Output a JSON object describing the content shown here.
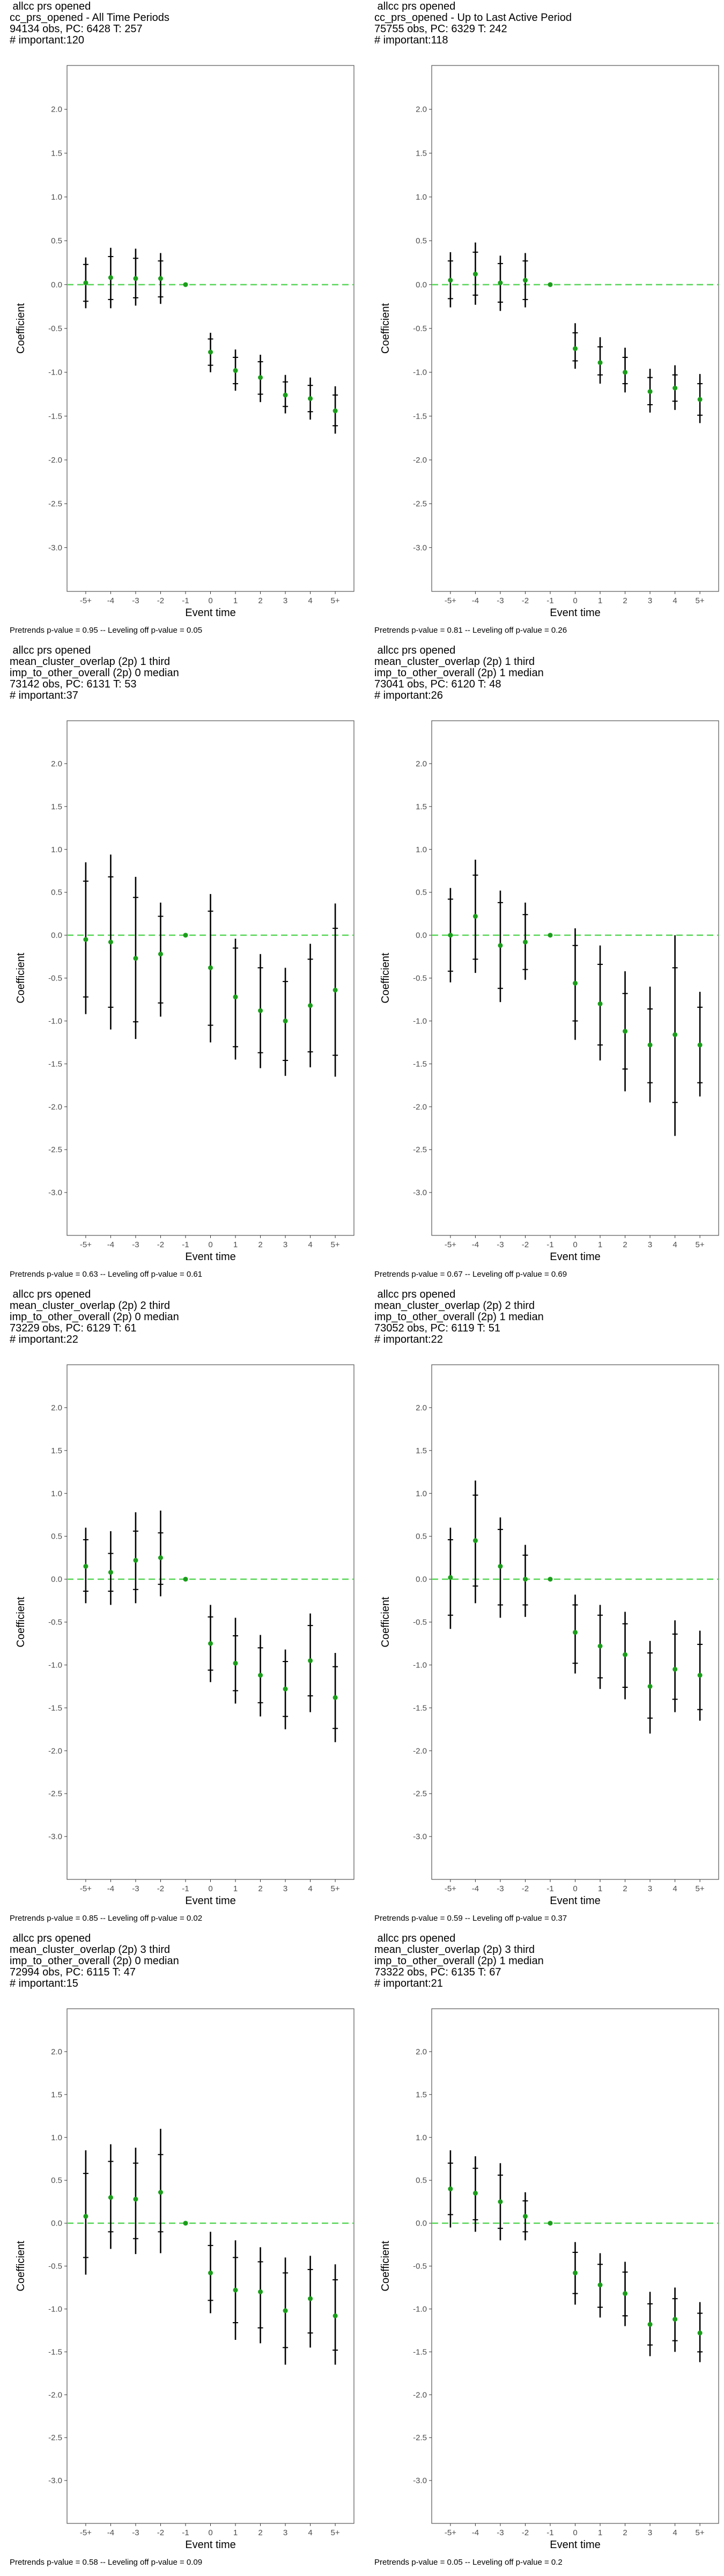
{
  "chart_data": [
    {
      "type": "scatter",
      "title_lines": [
        "allcc prs opened",
        "cc_prs_opened - All Time Periods",
        "94134 obs, PC: 6428 T: 257",
        "# important:120"
      ],
      "xlabel": "Event time",
      "ylabel": "Coefficient",
      "categories": [
        "-5+",
        "-4",
        "-3",
        "-2",
        "-1",
        "0",
        "1",
        "2",
        "3",
        "4",
        "5+"
      ],
      "ylim": [
        -3.5,
        2.5
      ],
      "yticks": [
        "-3.0",
        "-2.5",
        "-2.0",
        "-1.5",
        "-1.0",
        "-0.5",
        "0.0",
        "0.5",
        "1.0",
        "1.5",
        "2.0"
      ],
      "estimate": [
        0.02,
        0.08,
        0.07,
        0.07,
        0.0,
        -0.77,
        -0.98,
        -1.06,
        -1.26,
        -1.3,
        -1.44
      ],
      "ci_outer": [
        [
          -0.27,
          0.31
        ],
        [
          -0.27,
          0.42
        ],
        [
          -0.24,
          0.41
        ],
        [
          -0.22,
          0.36
        ],
        [
          0.0,
          0.0
        ],
        [
          -1.0,
          -0.55
        ],
        [
          -1.21,
          -0.74
        ],
        [
          -1.34,
          -0.8
        ],
        [
          -1.47,
          -1.03
        ],
        [
          -1.54,
          -1.06
        ],
        [
          -1.7,
          -1.16
        ]
      ],
      "ci_inner": [
        [
          -0.19,
          0.23
        ],
        [
          -0.17,
          0.32
        ],
        [
          -0.15,
          0.3
        ],
        [
          -0.14,
          0.27
        ],
        [
          0.0,
          0.0
        ],
        [
          -0.92,
          -0.62
        ],
        [
          -1.13,
          -0.83
        ],
        [
          -1.25,
          -0.88
        ],
        [
          -1.39,
          -1.11
        ],
        [
          -1.45,
          -1.15
        ],
        [
          -1.61,
          -1.26
        ]
      ],
      "reference_line": 0,
      "footer": "Pretrends p-value = 0.95 -- Leveling off p-value = 0.05"
    },
    {
      "type": "scatter",
      "title_lines": [
        "allcc prs opened",
        "cc_prs_opened - Up to Last Active Period",
        "75755 obs, PC: 6329 T: 242",
        "# important:118"
      ],
      "xlabel": "Event time",
      "ylabel": "Coefficient",
      "categories": [
        "-5+",
        "-4",
        "-3",
        "-2",
        "-1",
        "0",
        "1",
        "2",
        "3",
        "4",
        "5+"
      ],
      "ylim": [
        -3.5,
        2.5
      ],
      "yticks": [
        "-3.0",
        "-2.5",
        "-2.0",
        "-1.5",
        "-1.0",
        "-0.5",
        "0.0",
        "0.5",
        "1.0",
        "1.5",
        "2.0"
      ],
      "estimate": [
        0.05,
        0.12,
        0.02,
        0.05,
        0.0,
        -0.73,
        -0.89,
        -1.0,
        -1.22,
        -1.18,
        -1.31
      ],
      "ci_outer": [
        [
          -0.26,
          0.37
        ],
        [
          -0.23,
          0.48
        ],
        [
          -0.3,
          0.33
        ],
        [
          -0.26,
          0.36
        ],
        [
          0.0,
          0.0
        ],
        [
          -0.96,
          -0.44
        ],
        [
          -1.13,
          -0.6
        ],
        [
          -1.23,
          -0.72
        ],
        [
          -1.46,
          -0.96
        ],
        [
          -1.43,
          -0.92
        ],
        [
          -1.58,
          -1.02
        ]
      ],
      "ci_inner": [
        [
          -0.16,
          0.27
        ],
        [
          -0.12,
          0.37
        ],
        [
          -0.2,
          0.24
        ],
        [
          -0.17,
          0.27
        ],
        [
          0.0,
          0.0
        ],
        [
          -0.87,
          -0.55
        ],
        [
          -1.03,
          -0.71
        ],
        [
          -1.13,
          -0.83
        ],
        [
          -1.37,
          -1.06
        ],
        [
          -1.33,
          -1.03
        ],
        [
          -1.49,
          -1.13
        ]
      ],
      "reference_line": 0,
      "footer": "Pretrends p-value = 0.81 -- Leveling off p-value = 0.26"
    },
    {
      "type": "scatter",
      "title_lines": [
        "allcc prs opened",
        "mean_cluster_overlap (2p) 1 third",
        "imp_to_other_overall (2p) 0 median",
        "73142 obs, PC: 6131 T: 53",
        "# important:37"
      ],
      "xlabel": "Event time",
      "ylabel": "Coefficient",
      "categories": [
        "-5+",
        "-4",
        "-3",
        "-2",
        "-1",
        "0",
        "1",
        "2",
        "3",
        "4",
        "5+"
      ],
      "ylim": [
        -3.5,
        2.5
      ],
      "yticks": [
        "-3.0",
        "-2.5",
        "-2.0",
        "-1.5",
        "-1.0",
        "-0.5",
        "0.0",
        "0.5",
        "1.0",
        "1.5",
        "2.0"
      ],
      "estimate": [
        -0.05,
        -0.08,
        -0.27,
        -0.22,
        0.0,
        -0.38,
        -0.72,
        -0.88,
        -1.0,
        -0.82,
        -0.64
      ],
      "ci_outer": [
        [
          -0.92,
          0.85
        ],
        [
          -1.1,
          0.94
        ],
        [
          -1.21,
          0.68
        ],
        [
          -0.95,
          0.38
        ],
        [
          0.0,
          0.0
        ],
        [
          -1.25,
          0.48
        ],
        [
          -1.45,
          -0.04
        ],
        [
          -1.55,
          -0.22
        ],
        [
          -1.64,
          -0.38
        ],
        [
          -1.54,
          -0.1
        ],
        [
          -1.65,
          0.37
        ]
      ],
      "ci_inner": [
        [
          -0.72,
          0.63
        ],
        [
          -0.84,
          0.68
        ],
        [
          -1.01,
          0.44
        ],
        [
          -0.79,
          0.22
        ],
        [
          0.0,
          0.0
        ],
        [
          -1.05,
          0.28
        ],
        [
          -1.3,
          -0.15
        ],
        [
          -1.37,
          -0.38
        ],
        [
          -1.46,
          -0.54
        ],
        [
          -1.36,
          -0.28
        ],
        [
          -1.4,
          0.08
        ]
      ],
      "reference_line": 0,
      "footer": "Pretrends p-value = 0.63 -- Leveling off p-value = 0.61"
    },
    {
      "type": "scatter",
      "title_lines": [
        "allcc prs opened",
        "mean_cluster_overlap (2p) 1 third",
        "imp_to_other_overall (2p) 1 median",
        "73041 obs, PC: 6120 T: 48",
        "# important:26"
      ],
      "xlabel": "Event time",
      "ylabel": "Coefficient",
      "categories": [
        "-5+",
        "-4",
        "-3",
        "-2",
        "-1",
        "0",
        "1",
        "2",
        "3",
        "4",
        "5+"
      ],
      "ylim": [
        -3.5,
        2.5
      ],
      "yticks": [
        "-3.0",
        "-2.5",
        "-2.0",
        "-1.5",
        "-1.0",
        "-0.5",
        "0.0",
        "0.5",
        "1.0",
        "1.5",
        "2.0"
      ],
      "estimate": [
        0.0,
        0.22,
        -0.12,
        -0.08,
        0.0,
        -0.56,
        -0.8,
        -1.12,
        -1.28,
        -1.16,
        -1.28
      ],
      "ci_outer": [
        [
          -0.55,
          0.55
        ],
        [
          -0.44,
          0.88
        ],
        [
          -0.78,
          0.52
        ],
        [
          -0.52,
          0.38
        ],
        [
          0.0,
          0.0
        ],
        [
          -1.22,
          0.08
        ],
        [
          -1.46,
          -0.12
        ],
        [
          -1.82,
          -0.42
        ],
        [
          -1.95,
          -0.6
        ],
        [
          -2.34,
          0.0
        ],
        [
          -1.88,
          -0.66
        ]
      ],
      "ci_inner": [
        [
          -0.42,
          0.42
        ],
        [
          -0.28,
          0.7
        ],
        [
          -0.62,
          0.38
        ],
        [
          -0.4,
          0.24
        ],
        [
          0.0,
          0.0
        ],
        [
          -1.0,
          -0.12
        ],
        [
          -1.28,
          -0.34
        ],
        [
          -1.56,
          -0.68
        ],
        [
          -1.72,
          -0.86
        ],
        [
          -1.95,
          -0.38
        ],
        [
          -1.72,
          -0.84
        ]
      ],
      "reference_line": 0,
      "footer": "Pretrends p-value = 0.67 -- Leveling off p-value = 0.69"
    },
    {
      "type": "scatter",
      "title_lines": [
        "allcc prs opened",
        "mean_cluster_overlap (2p) 2 third",
        "imp_to_other_overall (2p) 0 median",
        "73229 obs, PC: 6129 T: 61",
        "# important:22"
      ],
      "xlabel": "Event time",
      "ylabel": "Coefficient",
      "categories": [
        "-5+",
        "-4",
        "-3",
        "-2",
        "-1",
        "0",
        "1",
        "2",
        "3",
        "4",
        "5+"
      ],
      "ylim": [
        -3.5,
        2.5
      ],
      "yticks": [
        "-3.0",
        "-2.5",
        "-2.0",
        "-1.5",
        "-1.0",
        "-0.5",
        "0.0",
        "0.5",
        "1.0",
        "1.5",
        "2.0"
      ],
      "estimate": [
        0.15,
        0.08,
        0.22,
        0.25,
        0.0,
        -0.75,
        -0.98,
        -1.12,
        -1.28,
        -0.95,
        -1.38
      ],
      "ci_outer": [
        [
          -0.28,
          0.6
        ],
        [
          -0.3,
          0.56
        ],
        [
          -0.28,
          0.78
        ],
        [
          -0.2,
          0.8
        ],
        [
          0.0,
          0.0
        ],
        [
          -1.2,
          -0.3
        ],
        [
          -1.45,
          -0.45
        ],
        [
          -1.6,
          -0.65
        ],
        [
          -1.75,
          -0.82
        ],
        [
          -1.55,
          -0.4
        ],
        [
          -1.9,
          -0.86
        ]
      ],
      "ci_inner": [
        [
          -0.14,
          0.46
        ],
        [
          -0.14,
          0.3
        ],
        [
          -0.12,
          0.56
        ],
        [
          -0.06,
          0.54
        ],
        [
          0.0,
          0.0
        ],
        [
          -1.06,
          -0.44
        ],
        [
          -1.3,
          -0.66
        ],
        [
          -1.44,
          -0.8
        ],
        [
          -1.6,
          -0.96
        ],
        [
          -1.36,
          -0.54
        ],
        [
          -1.74,
          -1.02
        ]
      ],
      "reference_line": 0,
      "footer": "Pretrends p-value = 0.85 -- Leveling off p-value = 0.02"
    },
    {
      "type": "scatter",
      "title_lines": [
        "allcc prs opened",
        "mean_cluster_overlap (2p) 2 third",
        "imp_to_other_overall (2p) 1 median",
        "73052 obs, PC: 6119 T: 51",
        "# important:22"
      ],
      "xlabel": "Event time",
      "ylabel": "Coefficient",
      "categories": [
        "-5+",
        "-4",
        "-3",
        "-2",
        "-1",
        "0",
        "1",
        "2",
        "3",
        "4",
        "5+"
      ],
      "ylim": [
        -3.5,
        2.5
      ],
      "yticks": [
        "-3.0",
        "-2.5",
        "-2.0",
        "-1.5",
        "-1.0",
        "-0.5",
        "0.0",
        "0.5",
        "1.0",
        "1.5",
        "2.0"
      ],
      "estimate": [
        0.02,
        0.45,
        0.15,
        0.0,
        0.0,
        -0.62,
        -0.78,
        -0.88,
        -1.25,
        -1.05,
        -1.12
      ],
      "ci_outer": [
        [
          -0.58,
          0.6
        ],
        [
          -0.28,
          1.15
        ],
        [
          -0.45,
          0.72
        ],
        [
          -0.44,
          0.4
        ],
        [
          0.0,
          0.0
        ],
        [
          -1.1,
          -0.18
        ],
        [
          -1.28,
          -0.3
        ],
        [
          -1.4,
          -0.38
        ],
        [
          -1.8,
          -0.72
        ],
        [
          -1.55,
          -0.48
        ],
        [
          -1.65,
          -0.6
        ]
      ],
      "ci_inner": [
        [
          -0.42,
          0.46
        ],
        [
          -0.08,
          0.98
        ],
        [
          -0.3,
          0.58
        ],
        [
          -0.3,
          0.28
        ],
        [
          0.0,
          0.0
        ],
        [
          -0.98,
          -0.3
        ],
        [
          -1.15,
          -0.42
        ],
        [
          -1.26,
          -0.52
        ],
        [
          -1.62,
          -0.86
        ],
        [
          -1.4,
          -0.64
        ],
        [
          -1.52,
          -0.76
        ]
      ],
      "reference_line": 0,
      "footer": "Pretrends p-value = 0.59 -- Leveling off p-value = 0.37"
    },
    {
      "type": "scatter",
      "title_lines": [
        "allcc prs opened",
        "mean_cluster_overlap (2p) 3 third",
        "imp_to_other_overall (2p) 0 median",
        "72994 obs, PC: 6115 T: 47",
        "# important:15"
      ],
      "xlabel": "Event time",
      "ylabel": "Coefficient",
      "categories": [
        "-5+",
        "-4",
        "-3",
        "-2",
        "-1",
        "0",
        "1",
        "2",
        "3",
        "4",
        "5+"
      ],
      "ylim": [
        -3.5,
        2.5
      ],
      "yticks": [
        "-3.0",
        "-2.5",
        "-2.0",
        "-1.5",
        "-1.0",
        "-0.5",
        "0.0",
        "0.5",
        "1.0",
        "1.5",
        "2.0"
      ],
      "estimate": [
        0.08,
        0.3,
        0.28,
        0.36,
        0.0,
        -0.58,
        -0.78,
        -0.8,
        -1.02,
        -0.88,
        -1.08
      ],
      "ci_outer": [
        [
          -0.6,
          0.85
        ],
        [
          -0.3,
          0.92
        ],
        [
          -0.36,
          0.88
        ],
        [
          -0.35,
          1.1
        ],
        [
          0.0,
          0.0
        ],
        [
          -1.05,
          -0.1
        ],
        [
          -1.36,
          -0.2
        ],
        [
          -1.4,
          -0.28
        ],
        [
          -1.65,
          -0.4
        ],
        [
          -1.45,
          -0.38
        ],
        [
          -1.65,
          -0.48
        ]
      ],
      "ci_inner": [
        [
          -0.4,
          0.58
        ],
        [
          -0.1,
          0.72
        ],
        [
          -0.18,
          0.7
        ],
        [
          -0.1,
          0.8
        ],
        [
          0.0,
          0.0
        ],
        [
          -0.9,
          -0.26
        ],
        [
          -1.16,
          -0.4
        ],
        [
          -1.22,
          -0.45
        ],
        [
          -1.45,
          -0.58
        ],
        [
          -1.28,
          -0.54
        ],
        [
          -1.48,
          -0.66
        ]
      ],
      "reference_line": 0,
      "footer": "Pretrends p-value = 0.58 -- Leveling off p-value = 0.09"
    },
    {
      "type": "scatter",
      "title_lines": [
        "allcc prs opened",
        "mean_cluster_overlap (2p) 3 third",
        "imp_to_other_overall (2p) 1 median",
        "73322 obs, PC: 6135 T: 67",
        "# important:21"
      ],
      "xlabel": "Event time",
      "ylabel": "Coefficient",
      "categories": [
        "-5+",
        "-4",
        "-3",
        "-2",
        "-1",
        "0",
        "1",
        "2",
        "3",
        "4",
        "5+"
      ],
      "ylim": [
        -3.5,
        2.5
      ],
      "yticks": [
        "-3.0",
        "-2.5",
        "-2.0",
        "-1.5",
        "-1.0",
        "-0.5",
        "0.0",
        "0.5",
        "1.0",
        "1.5",
        "2.0"
      ],
      "estimate": [
        0.4,
        0.35,
        0.25,
        0.08,
        0.0,
        -0.58,
        -0.72,
        -0.82,
        -1.18,
        -1.12,
        -1.28
      ],
      "ci_outer": [
        [
          -0.05,
          0.85
        ],
        [
          -0.1,
          0.78
        ],
        [
          -0.2,
          0.7
        ],
        [
          -0.2,
          0.36
        ],
        [
          0.0,
          0.0
        ],
        [
          -0.95,
          -0.22
        ],
        [
          -1.1,
          -0.35
        ],
        [
          -1.2,
          -0.45
        ],
        [
          -1.55,
          -0.8
        ],
        [
          -1.5,
          -0.75
        ],
        [
          -1.62,
          -0.92
        ]
      ],
      "ci_inner": [
        [
          0.1,
          0.7
        ],
        [
          0.04,
          0.64
        ],
        [
          -0.06,
          0.56
        ],
        [
          -0.1,
          0.26
        ],
        [
          0.0,
          0.0
        ],
        [
          -0.82,
          -0.34
        ],
        [
          -0.98,
          -0.48
        ],
        [
          -1.08,
          -0.57
        ],
        [
          -1.42,
          -0.94
        ],
        [
          -1.37,
          -0.88
        ],
        [
          -1.5,
          -1.05
        ]
      ],
      "reference_line": 0,
      "footer": "Pretrends p-value = 0.05 -- Leveling off p-value = 0.2"
    }
  ],
  "colors": {
    "point": "#1a9e1a",
    "reference_line": "#5ad65a",
    "error_bar": "#000000",
    "panel_border": "#555555"
  }
}
